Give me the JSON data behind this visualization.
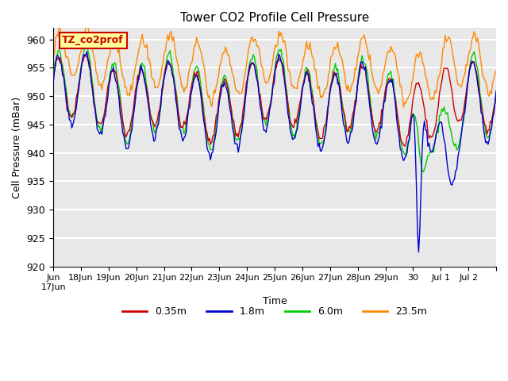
{
  "title": "Tower CO2 Profile Cell Pressure",
  "xlabel": "Time",
  "ylabel": "Cell Pressure (mBar)",
  "ylim": [
    920,
    962
  ],
  "yticks": [
    920,
    925,
    930,
    935,
    940,
    945,
    950,
    955,
    960
  ],
  "bg_color": "#e8e8e8",
  "grid_color": "white",
  "legend_label": "TZ_co2prof",
  "legend_bg": "#ffff99",
  "legend_border": "#cc0000",
  "series_colors": {
    "0.35m": "#cc0000",
    "1.8m": "#0000cc",
    "6.0m": "#00cc00",
    "23.5m": "#ff8800"
  },
  "x_tick_labels": [
    "Jun\n17Jun",
    "18Jun",
    "19Jun",
    "20Jun",
    "21Jun",
    "22Jun",
    "23Jun",
    "24Jun",
    "25Jun",
    "26Jun",
    "27Jun",
    "28Jun",
    "29Jun",
    "30",
    "Jul 1",
    "Jul 2",
    ""
  ],
  "num_days": 16
}
